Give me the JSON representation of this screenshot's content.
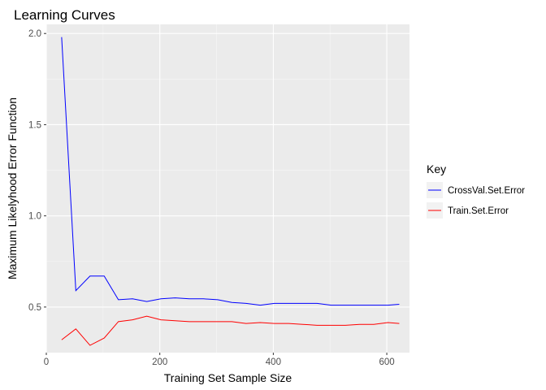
{
  "chart_data": {
    "type": "line",
    "title": "Learning Curves",
    "xlabel": "Training Set Sample Size",
    "ylabel": "Maximum Likelyhood Error Function",
    "xlim": [
      0,
      640
    ],
    "ylim": [
      0.25,
      2.05
    ],
    "xticks": [
      0,
      200,
      400,
      600
    ],
    "xtick_labels": [
      "0",
      "200",
      "400",
      "600"
    ],
    "yticks": [
      0.5,
      1.0,
      1.5,
      2.0
    ],
    "ytick_labels": [
      "0.5",
      "1.0",
      "1.5",
      "2.0"
    ],
    "grid": true,
    "legend": {
      "title": "Key",
      "position": "right"
    },
    "x": [
      27,
      52,
      77,
      102,
      127,
      152,
      177,
      202,
      227,
      252,
      277,
      302,
      327,
      352,
      377,
      402,
      427,
      452,
      477,
      502,
      527,
      552,
      577,
      602,
      622
    ],
    "series": [
      {
        "name": "CrossVal.Set.Error",
        "color": "#0000ff",
        "values": [
          1.98,
          0.59,
          0.67,
          0.67,
          0.54,
          0.545,
          0.53,
          0.545,
          0.55,
          0.545,
          0.545,
          0.54,
          0.525,
          0.52,
          0.51,
          0.52,
          0.52,
          0.52,
          0.52,
          0.51,
          0.51,
          0.51,
          0.51,
          0.51,
          0.515
        ]
      },
      {
        "name": "Train.Set.Error",
        "color": "#ff0000",
        "values": [
          0.32,
          0.38,
          0.29,
          0.33,
          0.42,
          0.43,
          0.45,
          0.43,
          0.425,
          0.42,
          0.42,
          0.42,
          0.42,
          0.41,
          0.415,
          0.41,
          0.41,
          0.405,
          0.4,
          0.4,
          0.4,
          0.405,
          0.405,
          0.415,
          0.41
        ]
      }
    ]
  }
}
